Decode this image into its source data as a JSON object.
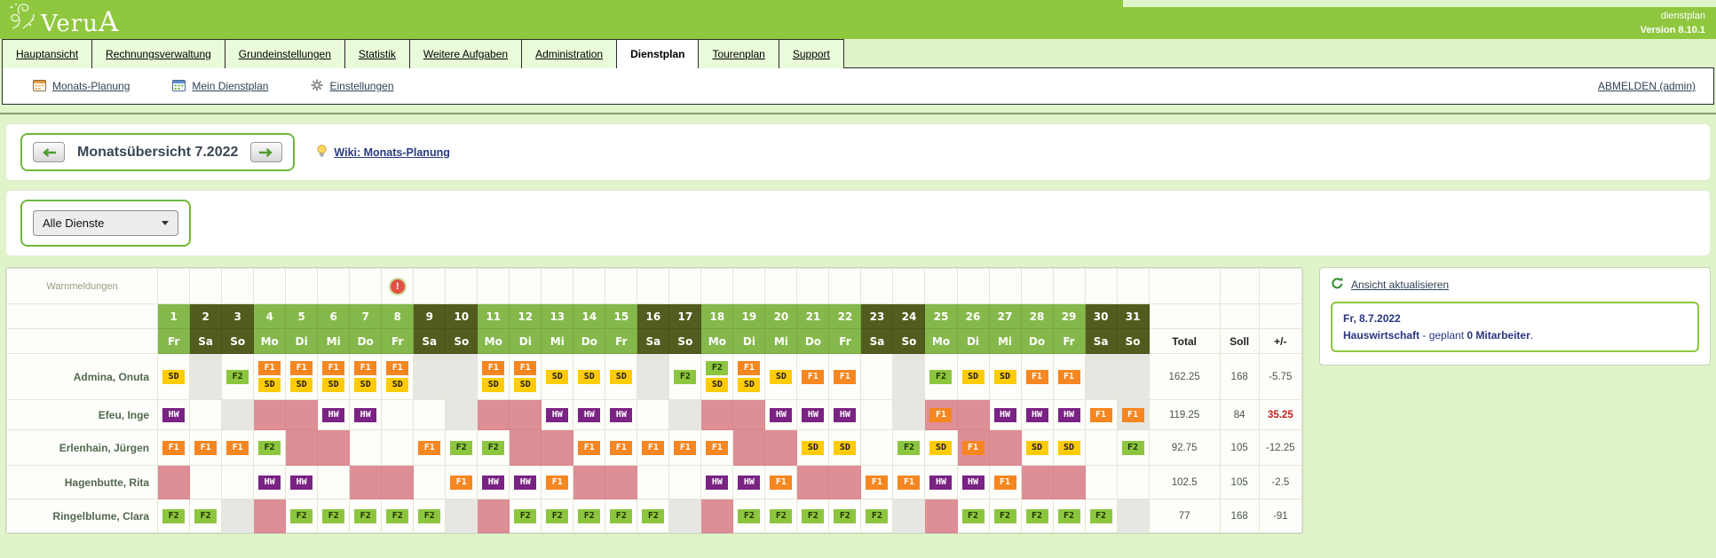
{
  "header": {
    "logo_text": "VeruA",
    "app_label": "dienstplan",
    "version_label": "Version 8.10.1",
    "bar_color": "#8fc73f"
  },
  "tabs": [
    {
      "label": "Hauptansicht",
      "active": false
    },
    {
      "label": "Rechnungsverwaltung",
      "active": false
    },
    {
      "label": "Grundeinstellungen",
      "active": false
    },
    {
      "label": "Statistik",
      "active": false
    },
    {
      "label": "Weitere Aufgaben",
      "active": false
    },
    {
      "label": "Administration",
      "active": false
    },
    {
      "label": "Dienstplan",
      "active": true
    },
    {
      "label": "Tourenplan",
      "active": false
    },
    {
      "label": "Support",
      "active": false
    }
  ],
  "toolbar": {
    "items": [
      {
        "label": "Monats-Planung",
        "icon": "calendar-orange-icon"
      },
      {
        "label": "Mein Dienstplan",
        "icon": "calendar-green-icon"
      },
      {
        "label": "Einstellungen",
        "icon": "gear-icon"
      }
    ],
    "logout_label": "ABMELDEN (admin)"
  },
  "month_nav": {
    "title": "Monatsübersicht 7.2022",
    "wiki_label": "Wiki: Monats-Planung"
  },
  "filter": {
    "selected": "Alle Dienste"
  },
  "roster": {
    "warn_label": "Warnmeldungen",
    "warning_day": 8,
    "summary_headers": [
      "Total",
      "Soll",
      "+/-"
    ],
    "legend_colors": {
      "SD": "#ffcb05",
      "F1": "#f6861f",
      "F2": "#8cc63e",
      "HW": "#7a2384",
      "absence_pink": "#de8e95",
      "blocked_gray": "#e7e6e2",
      "weekday_header": "#85b84b",
      "weekend_header": "#515c1e"
    },
    "days": [
      {
        "n": "1",
        "w": "Fr",
        "we": false
      },
      {
        "n": "2",
        "w": "Sa",
        "we": true
      },
      {
        "n": "3",
        "w": "So",
        "we": true
      },
      {
        "n": "4",
        "w": "Mo",
        "we": false
      },
      {
        "n": "5",
        "w": "Di",
        "we": false
      },
      {
        "n": "6",
        "w": "Mi",
        "we": false
      },
      {
        "n": "7",
        "w": "Do",
        "we": false
      },
      {
        "n": "8",
        "w": "Fr",
        "we": false
      },
      {
        "n": "9",
        "w": "Sa",
        "we": true
      },
      {
        "n": "10",
        "w": "So",
        "we": true
      },
      {
        "n": "11",
        "w": "Mo",
        "we": false
      },
      {
        "n": "12",
        "w": "Di",
        "we": false
      },
      {
        "n": "13",
        "w": "Mi",
        "we": false
      },
      {
        "n": "14",
        "w": "Do",
        "we": false
      },
      {
        "n": "15",
        "w": "Fr",
        "we": false
      },
      {
        "n": "16",
        "w": "Sa",
        "we": true
      },
      {
        "n": "17",
        "w": "So",
        "we": true
      },
      {
        "n": "18",
        "w": "Mo",
        "we": false
      },
      {
        "n": "19",
        "w": "Di",
        "we": false
      },
      {
        "n": "20",
        "w": "Mi",
        "we": false
      },
      {
        "n": "21",
        "w": "Do",
        "we": false
      },
      {
        "n": "22",
        "w": "Fr",
        "we": false
      },
      {
        "n": "23",
        "w": "Sa",
        "we": true
      },
      {
        "n": "24",
        "w": "So",
        "we": true
      },
      {
        "n": "25",
        "w": "Mo",
        "we": false
      },
      {
        "n": "26",
        "w": "Di",
        "we": false
      },
      {
        "n": "27",
        "w": "Mi",
        "we": false
      },
      {
        "n": "28",
        "w": "Do",
        "we": false
      },
      {
        "n": "29",
        "w": "Fr",
        "we": false
      },
      {
        "n": "30",
        "w": "Sa",
        "we": true
      },
      {
        "n": "31",
        "w": "So",
        "we": true
      }
    ],
    "employees": [
      {
        "name": "Admina, Onuta",
        "total": "162.25",
        "soll": "168",
        "diff": "-5.75",
        "diff_positive": false,
        "cells": [
          "SD",
          "g",
          "F2",
          "F1+SD",
          "F1+SD",
          "F1+SD",
          "F1+SD",
          "F1+SD",
          "g",
          "g",
          "F1+SD",
          "F1+SD",
          "SD",
          "SD",
          "SD",
          "g",
          "F2",
          "F2+SD",
          "F1+SD",
          "SD",
          "F1",
          "F1",
          "",
          "g",
          "F2",
          "SD",
          "SD",
          "F1",
          "F1",
          "g",
          "g"
        ]
      },
      {
        "name": "Efeu, Inge",
        "total": "119.25",
        "soll": "84",
        "diff": "35.25",
        "diff_positive": true,
        "cells": [
          "HW",
          "",
          "g",
          "p",
          "p",
          "HW",
          "HW",
          "",
          "",
          "g",
          "p",
          "p",
          "HW",
          "HW",
          "HW",
          "",
          "g",
          "p",
          "p",
          "HW",
          "HW",
          "HW",
          "",
          "g",
          "p:F1",
          "p",
          "HW",
          "HW",
          "HW",
          "F1",
          "g:F1"
        ]
      },
      {
        "name": "Erlenhain, Jürgen",
        "total": "92.75",
        "soll": "105",
        "diff": "-12.25",
        "diff_positive": false,
        "cells": [
          "F1",
          "F1",
          "F1",
          "F2",
          "p",
          "p",
          "",
          "",
          "F1",
          "F2",
          "F2",
          "p",
          "p",
          "F1",
          "F1",
          "F1",
          "F1",
          "F1",
          "p",
          "p",
          "SD",
          "SD",
          "",
          "F2",
          "SD",
          "p:F1",
          "p",
          "SD",
          "SD",
          "",
          "F2"
        ]
      },
      {
        "name": "Hagenbutte, Rita",
        "total": "102.5",
        "soll": "105",
        "diff": "-2.5",
        "diff_positive": false,
        "cells": [
          "p",
          "",
          "",
          "HW",
          "HW",
          "",
          "p",
          "p",
          "",
          "F1",
          "HW",
          "HW",
          "F1",
          "p",
          "p",
          "",
          "",
          "HW",
          "HW",
          "F1",
          "p",
          "p",
          "F1",
          "F1",
          "HW",
          "HW",
          "F1",
          "p",
          "p",
          "",
          ""
        ]
      },
      {
        "name": "Ringelblume, Clara",
        "total": "77",
        "soll": "168",
        "diff": "-91",
        "diff_positive": false,
        "cells": [
          "F2",
          "F2",
          "g",
          "p",
          "F2",
          "F2",
          "F2",
          "F2",
          "F2",
          "g",
          "p",
          "F2",
          "F2",
          "F2",
          "F2",
          "F2",
          "g",
          "p",
          "F2",
          "F2",
          "F2",
          "F2",
          "F2",
          "g",
          "p",
          "F2",
          "F2",
          "F2",
          "F2",
          "F2",
          "g"
        ]
      }
    ]
  },
  "right_panel": {
    "refresh_label": "Ansicht aktualisieren",
    "info_date": "Fr, 8.7.2022",
    "info_dept": "Hauswirtschaft",
    "info_mid": " - geplant ",
    "info_count": "0 Mitarbeiter",
    "info_period": "."
  }
}
